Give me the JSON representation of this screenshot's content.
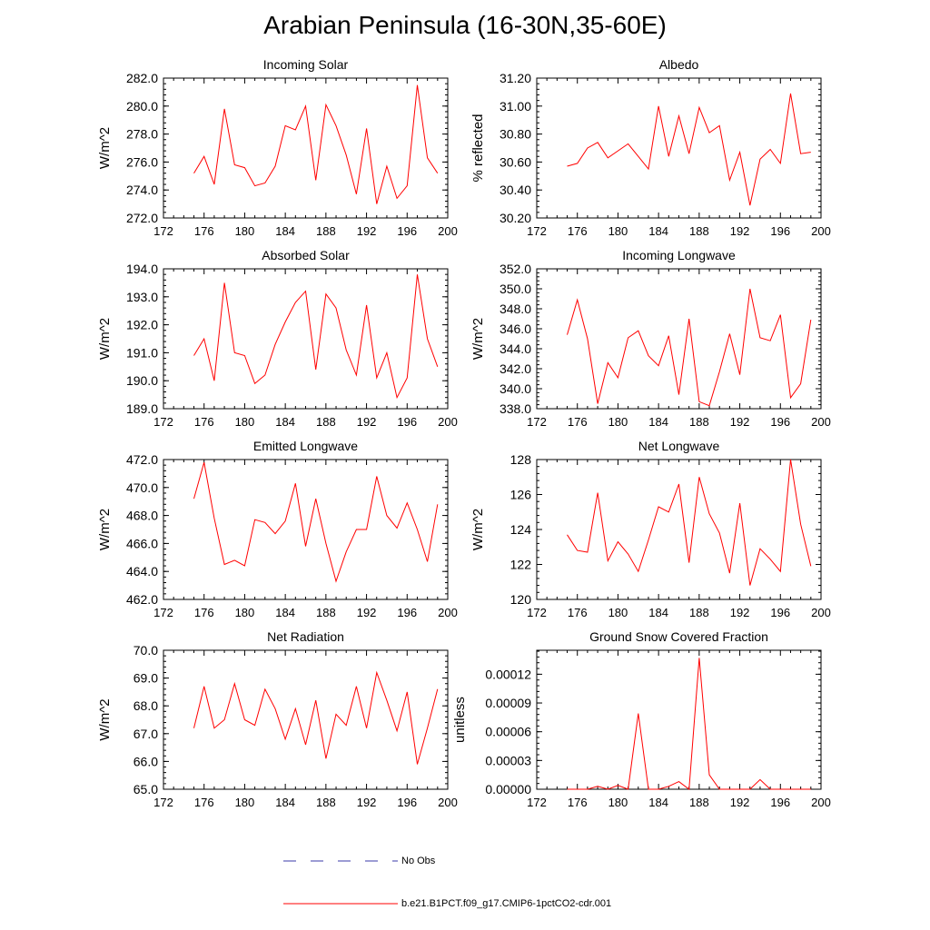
{
  "title": "Arabian Peninsula (16-30N,35-60E)",
  "colors": {
    "model_line": "#ff0000",
    "obs_line": "#3a3aa8",
    "axis": "#000000"
  },
  "legend": [
    {
      "label": "No Obs",
      "style": "dashed",
      "color": "#3a3aa8"
    },
    {
      "label": "b.e21.B1PCT.f09_g17.CMIP6-1pctCO2-cdr.001",
      "style": "solid",
      "color": "#ff0000"
    }
  ],
  "chart_data": [
    {
      "type": "line",
      "title": "Incoming Solar",
      "ylabel": "W/m^2",
      "xlim": [
        172,
        200
      ],
      "xticks": [
        172,
        176,
        180,
        184,
        188,
        192,
        196,
        200
      ],
      "ylim": [
        272,
        282
      ],
      "yticks": [
        272,
        274,
        276,
        278,
        280,
        282
      ],
      "ytick_labels": [
        "272.0",
        "274.0",
        "276.0",
        "278.0",
        "280.0",
        "282.0"
      ],
      "x": [
        175,
        176,
        177,
        178,
        179,
        180,
        181,
        182,
        183,
        184,
        185,
        186,
        187,
        188,
        189,
        190,
        191,
        192,
        193,
        194,
        195,
        196,
        197,
        198,
        199
      ],
      "series": [
        {
          "name": "b.e21.B1PCT.f09_g17.CMIP6-1pctCO2-cdr.001",
          "values": [
            275.2,
            276.4,
            274.4,
            279.8,
            275.8,
            275.6,
            274.3,
            274.5,
            275.7,
            278.6,
            278.3,
            280.0,
            274.7,
            280.1,
            278.6,
            276.5,
            273.7,
            278.4,
            273.0,
            275.7,
            273.4,
            274.3,
            281.5,
            276.3,
            275.2
          ]
        }
      ]
    },
    {
      "type": "line",
      "title": "Albedo",
      "ylabel": "% reflected",
      "xlim": [
        172,
        200
      ],
      "xticks": [
        172,
        176,
        180,
        184,
        188,
        192,
        196,
        200
      ],
      "ylim": [
        30.2,
        31.2
      ],
      "yticks": [
        30.2,
        30.4,
        30.6,
        30.8,
        31.0,
        31.2
      ],
      "ytick_labels": [
        "30.20",
        "30.40",
        "30.60",
        "30.80",
        "31.00",
        "31.20"
      ],
      "x": [
        175,
        176,
        177,
        178,
        179,
        180,
        181,
        182,
        183,
        184,
        185,
        186,
        187,
        188,
        189,
        190,
        191,
        192,
        193,
        194,
        195,
        196,
        197,
        198,
        199
      ],
      "series": [
        {
          "name": "b.e21.B1PCT.f09_g17.CMIP6-1pctCO2-cdr.001",
          "values": [
            30.57,
            30.59,
            30.7,
            30.74,
            30.63,
            30.68,
            30.73,
            30.64,
            30.55,
            31.0,
            30.64,
            30.93,
            30.66,
            30.99,
            30.81,
            30.86,
            30.47,
            30.67,
            30.29,
            30.62,
            30.69,
            30.59,
            31.09,
            30.66,
            30.67
          ]
        }
      ]
    },
    {
      "type": "line",
      "title": "Absorbed Solar",
      "ylabel": "W/m^2",
      "xlim": [
        172,
        200
      ],
      "xticks": [
        172,
        176,
        180,
        184,
        188,
        192,
        196,
        200
      ],
      "ylim": [
        189,
        194
      ],
      "yticks": [
        189,
        190,
        191,
        192,
        193,
        194
      ],
      "ytick_labels": [
        "189.0",
        "190.0",
        "191.0",
        "192.0",
        "193.0",
        "194.0"
      ],
      "x": [
        175,
        176,
        177,
        178,
        179,
        180,
        181,
        182,
        183,
        184,
        185,
        186,
        187,
        188,
        189,
        190,
        191,
        192,
        193,
        194,
        195,
        196,
        197,
        198,
        199
      ],
      "series": [
        {
          "name": "b.e21.B1PCT.f09_g17.CMIP6-1pctCO2-cdr.001",
          "values": [
            190.9,
            191.5,
            190.0,
            193.5,
            191.0,
            190.9,
            189.9,
            190.2,
            191.3,
            192.1,
            192.8,
            193.2,
            190.4,
            193.1,
            192.6,
            191.1,
            190.2,
            192.7,
            190.1,
            191.0,
            189.4,
            190.1,
            193.8,
            191.5,
            190.5
          ]
        }
      ]
    },
    {
      "type": "line",
      "title": "Incoming Longwave",
      "ylabel": "W/m^2",
      "xlim": [
        172,
        200
      ],
      "xticks": [
        172,
        176,
        180,
        184,
        188,
        192,
        196,
        200
      ],
      "ylim": [
        338,
        352
      ],
      "yticks": [
        338,
        340,
        342,
        344,
        346,
        348,
        350,
        352
      ],
      "ytick_labels": [
        "338.0",
        "340.0",
        "342.0",
        "344.0",
        "346.0",
        "348.0",
        "350.0",
        "352.0"
      ],
      "x": [
        175,
        176,
        177,
        178,
        179,
        180,
        181,
        182,
        183,
        184,
        185,
        186,
        187,
        188,
        189,
        190,
        191,
        192,
        193,
        194,
        195,
        196,
        197,
        198,
        199
      ],
      "series": [
        {
          "name": "b.e21.B1PCT.f09_g17.CMIP6-1pctCO2-cdr.001",
          "values": [
            345.4,
            348.9,
            345.0,
            338.5,
            342.6,
            341.1,
            345.1,
            345.8,
            343.3,
            342.3,
            345.3,
            339.4,
            347.0,
            338.7,
            338.3,
            341.7,
            345.5,
            341.4,
            350.0,
            345.1,
            344.8,
            347.4,
            339.1,
            340.5,
            346.9
          ]
        }
      ]
    },
    {
      "type": "line",
      "title": "Emitted Longwave",
      "ylabel": "W/m^2",
      "xlim": [
        172,
        200
      ],
      "xticks": [
        172,
        176,
        180,
        184,
        188,
        192,
        196,
        200
      ],
      "ylim": [
        462,
        472
      ],
      "yticks": [
        462,
        464,
        466,
        468,
        470,
        472
      ],
      "ytick_labels": [
        "462.0",
        "464.0",
        "466.0",
        "468.0",
        "470.0",
        "472.0"
      ],
      "x": [
        175,
        176,
        177,
        178,
        179,
        180,
        181,
        182,
        183,
        184,
        185,
        186,
        187,
        188,
        189,
        190,
        191,
        192,
        193,
        194,
        195,
        196,
        197,
        198,
        199
      ],
      "series": [
        {
          "name": "b.e21.B1PCT.f09_g17.CMIP6-1pctCO2-cdr.001",
          "values": [
            469.2,
            471.8,
            467.8,
            464.5,
            464.8,
            464.4,
            467.7,
            467.5,
            466.7,
            467.6,
            470.3,
            465.8,
            469.2,
            466.0,
            463.3,
            465.4,
            467.0,
            467.0,
            470.8,
            468.0,
            467.1,
            468.9,
            467.0,
            464.7,
            468.8
          ]
        }
      ]
    },
    {
      "type": "line",
      "title": "Net Longwave",
      "ylabel": "W/m^2",
      "xlim": [
        172,
        200
      ],
      "xticks": [
        172,
        176,
        180,
        184,
        188,
        192,
        196,
        200
      ],
      "ylim": [
        120,
        128
      ],
      "yticks": [
        120,
        122,
        124,
        126,
        128
      ],
      "ytick_labels": [
        "120",
        "122",
        "124",
        "126",
        "128"
      ],
      "x": [
        175,
        176,
        177,
        178,
        179,
        180,
        181,
        182,
        183,
        184,
        185,
        186,
        187,
        188,
        189,
        190,
        191,
        192,
        193,
        194,
        195,
        196,
        197,
        198,
        199
      ],
      "series": [
        {
          "name": "b.e21.B1PCT.f09_g17.CMIP6-1pctCO2-cdr.001",
          "values": [
            123.7,
            122.8,
            122.7,
            126.1,
            122.2,
            123.3,
            122.6,
            121.6,
            123.4,
            125.3,
            125.0,
            126.6,
            122.1,
            127.0,
            124.9,
            123.8,
            121.5,
            125.5,
            120.8,
            122.9,
            122.3,
            121.6,
            128.0,
            124.3,
            121.9
          ]
        }
      ]
    },
    {
      "type": "line",
      "title": "Net Radiation",
      "ylabel": "W/m^2",
      "xlim": [
        172,
        200
      ],
      "xticks": [
        172,
        176,
        180,
        184,
        188,
        192,
        196,
        200
      ],
      "ylim": [
        65,
        70
      ],
      "yticks": [
        65,
        66,
        67,
        68,
        69,
        70
      ],
      "ytick_labels": [
        "65.0",
        "66.0",
        "67.0",
        "68.0",
        "69.0",
        "70.0"
      ],
      "x": [
        175,
        176,
        177,
        178,
        179,
        180,
        181,
        182,
        183,
        184,
        185,
        186,
        187,
        188,
        189,
        190,
        191,
        192,
        193,
        194,
        195,
        196,
        197,
        198,
        199
      ],
      "series": [
        {
          "name": "b.e21.B1PCT.f09_g17.CMIP6-1pctCO2-cdr.001",
          "values": [
            67.2,
            68.7,
            67.2,
            67.5,
            68.8,
            67.5,
            67.3,
            68.6,
            67.9,
            66.8,
            67.9,
            66.6,
            68.2,
            66.1,
            67.7,
            67.3,
            68.7,
            67.2,
            69.2,
            68.2,
            67.1,
            68.5,
            65.9,
            67.2,
            68.6
          ]
        }
      ]
    },
    {
      "type": "line",
      "title": "Ground Snow Covered Fraction",
      "ylabel": "unitless",
      "xlim": [
        172,
        200
      ],
      "xticks": [
        172,
        176,
        180,
        184,
        188,
        192,
        196,
        200
      ],
      "ylim": [
        0,
        0.000145
      ],
      "yticks": [
        0,
        3e-05,
        6e-05,
        9e-05,
        0.00012
      ],
      "ytick_labels": [
        "0.00000",
        "0.00003",
        "0.00006",
        "0.00009",
        "0.00012"
      ],
      "x": [
        175,
        176,
        177,
        178,
        179,
        180,
        181,
        182,
        183,
        184,
        185,
        186,
        187,
        188,
        189,
        190,
        191,
        192,
        193,
        194,
        195,
        196,
        197,
        198,
        199
      ],
      "series": [
        {
          "name": "b.e21.B1PCT.f09_g17.CMIP6-1pctCO2-cdr.001",
          "values": [
            0,
            0,
            0,
            3e-06,
            0,
            4e-06,
            0,
            7.9e-05,
            0,
            0,
            3e-06,
            8e-06,
            0,
            0.000137,
            1.5e-05,
            0,
            0,
            0,
            0,
            1e-05,
            0,
            0,
            0,
            0,
            0
          ]
        }
      ]
    }
  ]
}
